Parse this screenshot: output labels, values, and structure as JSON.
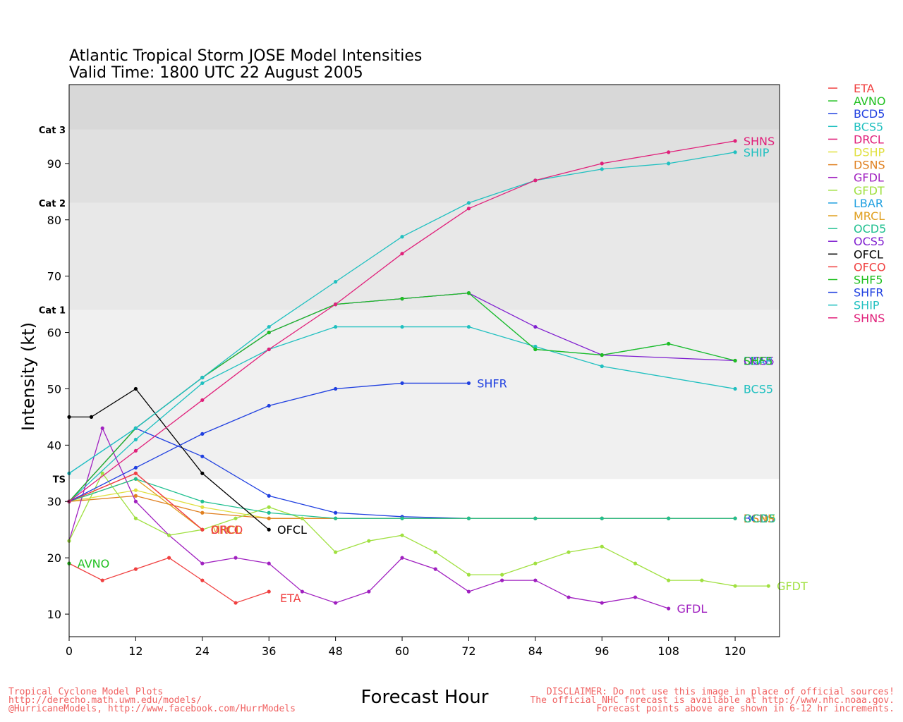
{
  "chart_data": {
    "type": "line",
    "title": "Atlantic Tropical Storm JOSE Model Intensities",
    "subtitle": "Valid Time: 1800 UTC 22 August 2005",
    "xlabel": "Forecast Hour",
    "ylabel": "Intensity (kt)",
    "xlim": [
      0,
      128
    ],
    "ylim": [
      6,
      104
    ],
    "xticks": [
      0,
      12,
      24,
      36,
      48,
      60,
      72,
      84,
      96,
      108,
      120
    ],
    "yticks": [
      10,
      20,
      30,
      40,
      50,
      60,
      70,
      80,
      90
    ],
    "grid": false,
    "legend_position": "right",
    "intensity_bands": [
      {
        "label": "",
        "from": 6,
        "to": 34,
        "color": "#ffffff"
      },
      {
        "label": "TS",
        "from": 34,
        "to": 64,
        "color": "#f0f0f0"
      },
      {
        "label": "Cat 1",
        "from": 64,
        "to": 83,
        "color": "#e8e8e8"
      },
      {
        "label": "Cat 2",
        "from": 83,
        "to": 96,
        "color": "#e0e0e0"
      },
      {
        "label": "Cat 3",
        "from": 96,
        "to": 104,
        "color": "#d8d8d8"
      }
    ],
    "series": [
      {
        "name": "ETA",
        "color": "#f04040",
        "label_offset": [
          2,
          -1.1
        ],
        "points": [
          [
            0,
            19
          ],
          [
            6,
            16
          ],
          [
            12,
            18
          ],
          [
            18,
            20
          ],
          [
            24,
            16
          ],
          [
            30,
            12
          ],
          [
            36,
            14
          ]
        ]
      },
      {
        "name": "AVNO",
        "color": "#20c020",
        "label_offset": [
          1.5,
          0
        ],
        "points": [
          [
            0,
            19
          ]
        ]
      },
      {
        "name": "BCD5",
        "color": "#2040e0",
        "label_offset": [
          1.5,
          0
        ],
        "points": [
          [
            0,
            30
          ],
          [
            12,
            43
          ],
          [
            24,
            38
          ],
          [
            36,
            31
          ],
          [
            48,
            28
          ],
          [
            60,
            27.3
          ],
          [
            72,
            27
          ],
          [
            84,
            27
          ],
          [
            96,
            27
          ],
          [
            108,
            27
          ],
          [
            120,
            27
          ]
        ]
      },
      {
        "name": "BCS5",
        "color": "#20c0c0",
        "label_offset": [
          1.5,
          0
        ],
        "points": [
          [
            0,
            30
          ],
          [
            12,
            41
          ],
          [
            24,
            51
          ],
          [
            36,
            57
          ],
          [
            48,
            61
          ],
          [
            60,
            61
          ],
          [
            72,
            61
          ],
          [
            84,
            57.5
          ],
          [
            96,
            54
          ],
          [
            120,
            50
          ]
        ]
      },
      {
        "name": "DRCL",
        "color": "#e0207a",
        "label_offset": [
          1.5,
          0
        ],
        "points": [
          [
            0,
            30
          ],
          [
            12,
            35
          ],
          [
            24,
            25
          ]
        ]
      },
      {
        "name": "DSHP",
        "color": "#e0e040",
        "label_offset": [
          1.5,
          0
        ],
        "points": [
          [
            0,
            30
          ],
          [
            12,
            32
          ],
          [
            24,
            29
          ],
          [
            36,
            27
          ],
          [
            48,
            27
          ],
          [
            60,
            27
          ],
          [
            72,
            27
          ],
          [
            84,
            27
          ],
          [
            96,
            27
          ],
          [
            108,
            27
          ],
          [
            120,
            27
          ]
        ]
      },
      {
        "name": "DSNS",
        "color": "#e08020",
        "label_offset": [
          1.5,
          0
        ],
        "points": [
          [
            0,
            30
          ],
          [
            12,
            31
          ],
          [
            24,
            28
          ],
          [
            36,
            27
          ],
          [
            48,
            27
          ],
          [
            60,
            27
          ],
          [
            72,
            27
          ],
          [
            84,
            27
          ],
          [
            96,
            27
          ],
          [
            108,
            27
          ],
          [
            120,
            27
          ]
        ]
      },
      {
        "name": "GFDL",
        "color": "#a020c0",
        "label_offset": [
          1.5,
          0
        ],
        "points": [
          [
            0,
            23
          ],
          [
            6,
            43
          ],
          [
            12,
            30
          ],
          [
            18,
            24
          ],
          [
            24,
            19
          ],
          [
            30,
            20
          ],
          [
            36,
            19
          ],
          [
            42,
            14
          ],
          [
            48,
            12
          ],
          [
            54,
            14
          ],
          [
            60,
            20
          ],
          [
            66,
            18
          ],
          [
            72,
            14
          ],
          [
            78,
            16
          ],
          [
            84,
            16
          ],
          [
            90,
            13
          ],
          [
            96,
            12
          ],
          [
            102,
            13
          ],
          [
            108,
            11
          ]
        ]
      },
      {
        "name": "GFDT",
        "color": "#a0e040",
        "label_offset": [
          1.5,
          0
        ],
        "points": [
          [
            0,
            23
          ],
          [
            6,
            35
          ],
          [
            12,
            27
          ],
          [
            18,
            24
          ],
          [
            24,
            25
          ],
          [
            30,
            27
          ],
          [
            36,
            29
          ],
          [
            42,
            27
          ],
          [
            48,
            21
          ],
          [
            54,
            23
          ],
          [
            60,
            24
          ],
          [
            66,
            21
          ],
          [
            72,
            17
          ],
          [
            78,
            17
          ],
          [
            84,
            19
          ],
          [
            90,
            21
          ],
          [
            96,
            22
          ],
          [
            102,
            19
          ],
          [
            108,
            16
          ],
          [
            114,
            16
          ],
          [
            120,
            15
          ],
          [
            126,
            15
          ]
        ]
      },
      {
        "name": "LBAR",
        "color": "#20a0e0",
        "label_offset": [
          1.5,
          0
        ],
        "points": [
          [
            0,
            35
          ],
          [
            12,
            43
          ],
          [
            24,
            52
          ],
          [
            36,
            60
          ],
          [
            48,
            65
          ],
          [
            60,
            66
          ],
          [
            72,
            67
          ],
          [
            84,
            57
          ],
          [
            96,
            56
          ],
          [
            108,
            58
          ],
          [
            120,
            55
          ]
        ]
      },
      {
        "name": "MRCL",
        "color": "#e0a020",
        "label_offset": [
          1.5,
          0
        ],
        "points": [
          [
            0,
            30
          ],
          [
            12,
            34
          ],
          [
            24,
            25
          ]
        ]
      },
      {
        "name": "OCD5",
        "color": "#20c090",
        "label_offset": [
          1.5,
          0
        ],
        "points": [
          [
            0,
            30
          ],
          [
            12,
            34
          ],
          [
            24,
            30
          ],
          [
            36,
            28
          ],
          [
            48,
            27
          ],
          [
            60,
            27
          ],
          [
            72,
            27
          ],
          [
            84,
            27
          ],
          [
            96,
            27
          ],
          [
            108,
            27
          ],
          [
            120,
            27
          ]
        ]
      },
      {
        "name": "OCS5",
        "color": "#8020d0",
        "label_offset": [
          1.5,
          0
        ],
        "points": [
          [
            0,
            30
          ],
          [
            12,
            43
          ],
          [
            24,
            52
          ],
          [
            36,
            60
          ],
          [
            48,
            65
          ],
          [
            60,
            66
          ],
          [
            72,
            67
          ],
          [
            84,
            61
          ],
          [
            96,
            56
          ],
          [
            120,
            55
          ]
        ]
      },
      {
        "name": "OFCL",
        "color": "#000000",
        "label_offset": [
          1.5,
          0
        ],
        "points": [
          [
            0,
            45
          ],
          [
            4,
            45
          ],
          [
            12,
            50
          ],
          [
            24,
            35
          ],
          [
            36,
            25
          ]
        ]
      },
      {
        "name": "OFCO",
        "color": "#f04040",
        "label_offset": [
          1.5,
          0
        ],
        "points": [
          [
            0,
            30
          ],
          [
            12,
            35
          ],
          [
            24,
            25
          ]
        ]
      },
      {
        "name": "SHF5",
        "color": "#20c020",
        "label_offset": [
          1.5,
          0
        ],
        "points": [
          [
            0,
            30
          ],
          [
            12,
            43
          ],
          [
            24,
            52
          ],
          [
            36,
            60
          ],
          [
            48,
            65
          ],
          [
            60,
            66
          ],
          [
            72,
            67
          ],
          [
            84,
            57
          ],
          [
            96,
            56
          ],
          [
            108,
            58
          ],
          [
            120,
            55
          ]
        ]
      },
      {
        "name": "SHFR",
        "color": "#2040e0",
        "label_offset": [
          1.5,
          0
        ],
        "points": [
          [
            0,
            30
          ],
          [
            12,
            36
          ],
          [
            24,
            42
          ],
          [
            36,
            47
          ],
          [
            48,
            50
          ],
          [
            60,
            51
          ],
          [
            72,
            51
          ]
        ]
      },
      {
        "name": "SHIP",
        "color": "#20c0c0",
        "label_offset": [
          1.5,
          0
        ],
        "points": [
          [
            0,
            35
          ],
          [
            12,
            43
          ],
          [
            24,
            52
          ],
          [
            36,
            61
          ],
          [
            48,
            69
          ],
          [
            60,
            77
          ],
          [
            72,
            83
          ],
          [
            84,
            87
          ],
          [
            96,
            89
          ],
          [
            108,
            90
          ],
          [
            120,
            92
          ]
        ]
      },
      {
        "name": "SHNS",
        "color": "#e0207a",
        "label_offset": [
          1.5,
          0
        ],
        "points": [
          [
            0,
            30
          ],
          [
            12,
            39
          ],
          [
            24,
            48
          ],
          [
            36,
            57
          ],
          [
            48,
            65
          ],
          [
            60,
            74
          ],
          [
            72,
            82
          ],
          [
            84,
            87
          ],
          [
            96,
            90
          ],
          [
            108,
            92
          ],
          [
            120,
            94
          ]
        ]
      }
    ]
  },
  "footer_left": [
    "Tropical Cyclone Model Plots",
    "http://derecho.math.uwm.edu/models/",
    "@HurricaneModels, http://www.facebook.com/HurrModels"
  ],
  "footer_right": [
    "DISCLAIMER: Do not use this image in place of official sources!",
    "The official NHC forecast is available at http://www.nhc.noaa.gov.",
    "Forecast points above are shown in 6-12 hr increments."
  ]
}
